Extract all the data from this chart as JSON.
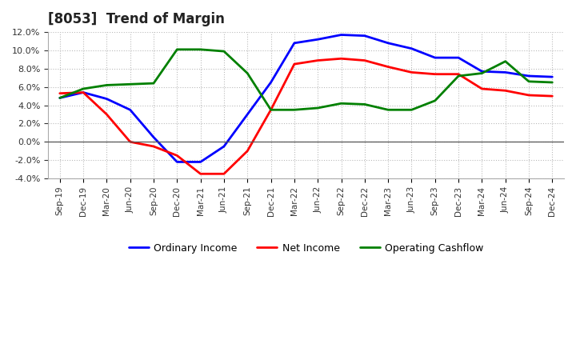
{
  "title": "[8053]  Trend of Margin",
  "x_labels": [
    "Sep-19",
    "Dec-19",
    "Mar-20",
    "Jun-20",
    "Sep-20",
    "Dec-20",
    "Mar-21",
    "Jun-21",
    "Sep-21",
    "Dec-21",
    "Mar-22",
    "Jun-22",
    "Sep-22",
    "Dec-22",
    "Mar-23",
    "Jun-23",
    "Sep-23",
    "Dec-23",
    "Mar-24",
    "Jun-24",
    "Sep-24",
    "Dec-24"
  ],
  "ordinary_income": [
    4.8,
    5.4,
    4.7,
    3.5,
    0.5,
    -2.2,
    -2.2,
    -0.5,
    3.0,
    6.5,
    10.8,
    11.2,
    11.7,
    11.6,
    10.8,
    10.2,
    9.2,
    9.2,
    7.7,
    7.6,
    7.2,
    7.1
  ],
  "net_income": [
    5.3,
    5.4,
    3.0,
    0.0,
    -0.5,
    -1.5,
    -3.5,
    -3.5,
    -1.0,
    3.5,
    8.5,
    8.9,
    9.1,
    8.9,
    8.2,
    7.6,
    7.4,
    7.4,
    5.8,
    5.6,
    5.1,
    5.0
  ],
  "operating_cashflow": [
    4.8,
    5.8,
    6.2,
    6.3,
    6.4,
    10.1,
    10.1,
    9.9,
    7.5,
    3.5,
    3.5,
    3.7,
    4.2,
    4.1,
    3.5,
    3.5,
    4.5,
    7.2,
    7.5,
    8.8,
    6.6,
    6.5
  ],
  "ylim": [
    -4.0,
    12.0
  ],
  "yticks": [
    -4.0,
    -2.0,
    0.0,
    2.0,
    4.0,
    6.0,
    8.0,
    10.0,
    12.0
  ],
  "line_colors": {
    "ordinary_income": "#0000ff",
    "net_income": "#ff0000",
    "operating_cashflow": "#008000"
  },
  "line_width": 2.0,
  "background_color": "#ffffff",
  "grid_color": "#aaaaaa",
  "legend_labels": [
    "Ordinary Income",
    "Net Income",
    "Operating Cashflow"
  ]
}
